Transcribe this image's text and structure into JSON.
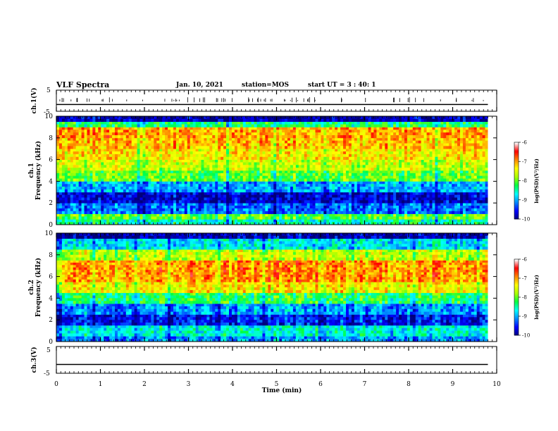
{
  "header": {
    "title": "VLF Spectra",
    "date": "Jan. 10, 2021",
    "station": "station=MOS",
    "start": "start  UT =  3 : 40: 1"
  },
  "chart_data": [
    {
      "type": "line",
      "panel": "ch1-waveform",
      "ylabel": "ch.1(V)",
      "ylim": [
        -5,
        5
      ],
      "yticks": [
        "5",
        "-5"
      ],
      "series": [
        {
          "x": [
            0,
            9.8
          ],
          "values": [
            -1.8,
            -1.8
          ]
        }
      ]
    },
    {
      "type": "heatmap",
      "panel": "ch1-spectrogram",
      "ylabel": "ch.1 Frequency (kHz)",
      "ylim": [
        0,
        10
      ],
      "yticks": [
        "0",
        "2",
        "4",
        "6",
        "8",
        "10"
      ],
      "xlim": [
        0,
        10
      ],
      "data_end_min": 9.8,
      "bands": [
        {
          "f0": 0,
          "f1": 0.5,
          "level": -8.5
        },
        {
          "f0": 0.5,
          "f1": 1.0,
          "level": -8.0
        },
        {
          "f0": 1.0,
          "f1": 2.0,
          "level": -9.2
        },
        {
          "f0": 2.0,
          "f1": 3.0,
          "level": -9.7
        },
        {
          "f0": 3.0,
          "f1": 4.0,
          "level": -9.0
        },
        {
          "f0": 4.0,
          "f1": 5.0,
          "level": -8.0
        },
        {
          "f0": 5.0,
          "f1": 6.0,
          "level": -7.6
        },
        {
          "f0": 6.0,
          "f1": 7.0,
          "level": -7.3
        },
        {
          "f0": 7.0,
          "f1": 8.0,
          "level": -7.1
        },
        {
          "f0": 8.0,
          "f1": 9.0,
          "level": -7.0
        },
        {
          "f0": 9.0,
          "f1": 9.5,
          "level": -8.3
        },
        {
          "f0": 9.5,
          "f1": 10.0,
          "level": -9.8
        }
      ],
      "colorbar": {
        "label": "log(PSD)(V²/Hz)",
        "range": [
          -10,
          -6
        ],
        "ticks": [
          "-6",
          "-7",
          "-8",
          "-9",
          "-10"
        ]
      }
    },
    {
      "type": "heatmap",
      "panel": "ch2-spectrogram",
      "ylabel": "ch.2 Frequency (kHz)",
      "ylim": [
        0,
        10
      ],
      "yticks": [
        "0",
        "2",
        "4",
        "6",
        "8",
        "10"
      ],
      "xlim": [
        0,
        10
      ],
      "data_end_min": 9.8,
      "bands": [
        {
          "f0": 0,
          "f1": 0.5,
          "level": -9.0
        },
        {
          "f0": 0.5,
          "f1": 1.5,
          "level": -8.6
        },
        {
          "f0": 1.5,
          "f1": 2.5,
          "level": -9.5
        },
        {
          "f0": 2.5,
          "f1": 3.5,
          "level": -9.0
        },
        {
          "f0": 3.5,
          "f1": 4.5,
          "level": -8.2
        },
        {
          "f0": 4.5,
          "f1": 5.5,
          "level": -7.3
        },
        {
          "f0": 5.5,
          "f1": 7.5,
          "level": -6.9
        },
        {
          "f0": 7.5,
          "f1": 8.5,
          "level": -7.6
        },
        {
          "f0": 8.5,
          "f1": 9.5,
          "level": -8.7
        },
        {
          "f0": 9.5,
          "f1": 10.0,
          "level": -9.8
        }
      ],
      "colorbar": {
        "label": "log(PSD)(V²/Hz)",
        "range": [
          -10,
          -6
        ],
        "ticks": [
          "-6",
          "-7",
          "-8",
          "-9",
          "-10"
        ]
      }
    },
    {
      "type": "line",
      "panel": "ch3-waveform",
      "ylabel": "ch.3(V)",
      "ylim": [
        -5,
        5
      ],
      "yticks": [
        "5",
        "-5"
      ],
      "xlabel": "Time (min)",
      "xticks": [
        "0",
        "1",
        "2",
        "3",
        "4",
        "5",
        "6",
        "7",
        "8",
        "9",
        "10"
      ],
      "series": [
        {
          "x": [
            0,
            9.8
          ],
          "values": [
            -1.7,
            -1.7
          ]
        }
      ]
    }
  ],
  "colors": {
    "colormap": [
      "#00007a",
      "#0000ff",
      "#0088ff",
      "#00ffff",
      "#00ff44",
      "#aaff00",
      "#ffff00",
      "#ff8800",
      "#ff0000",
      "#ffffff"
    ]
  }
}
